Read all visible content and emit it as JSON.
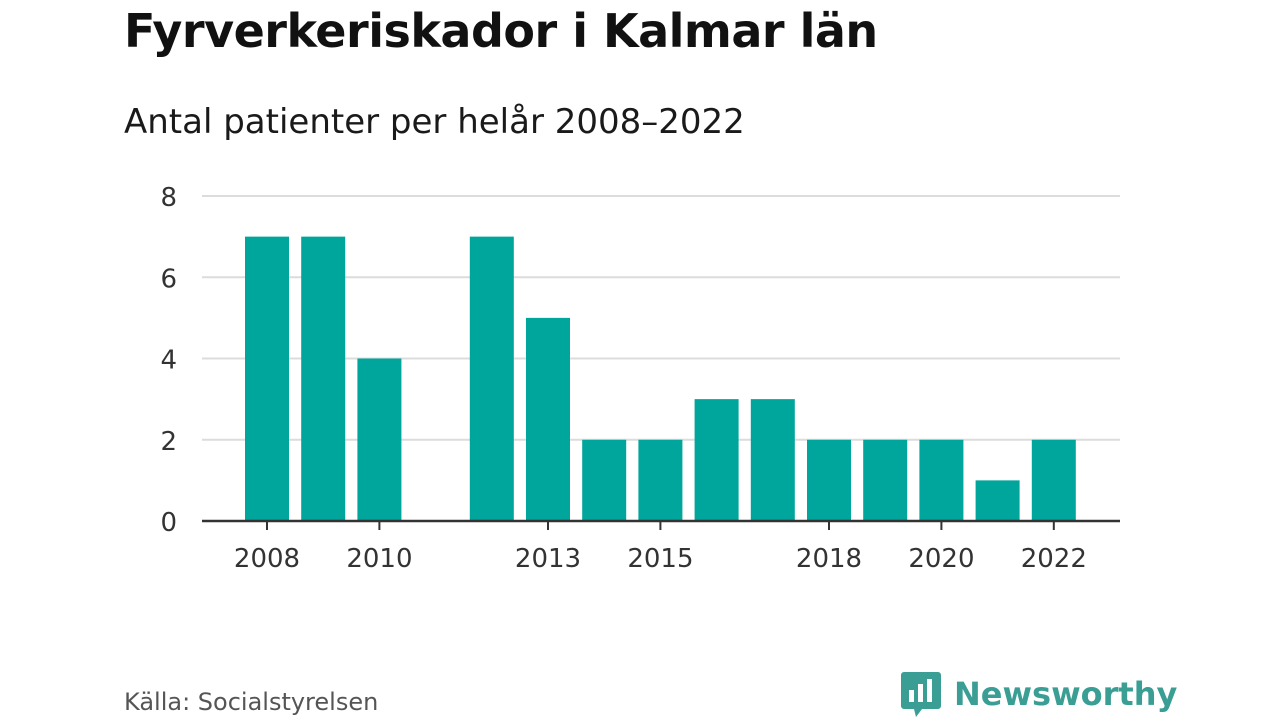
{
  "title": "Fyrverkeriskador i Kalmar län",
  "subtitle": "Antal patienter per helår 2008–2022",
  "source": "Källa: Socialstyrelsen",
  "brand": {
    "name": "Newsworthy",
    "icon": "newsworthy-logo-icon"
  },
  "colors": {
    "bar": "#00a59b",
    "grid": "#dcdcdc",
    "axis": "#333333",
    "brand": "#3a9e94"
  },
  "chart_data": {
    "type": "bar",
    "categories": [
      "2008",
      "2009",
      "2010",
      "2011",
      "2012",
      "2013",
      "2014",
      "2015",
      "2016",
      "2017",
      "2018",
      "2019",
      "2020",
      "2021",
      "2022"
    ],
    "values": [
      7,
      7,
      4,
      0,
      7,
      5,
      2,
      2,
      3,
      3,
      2,
      2,
      2,
      1,
      2
    ],
    "x_tick_labels": [
      "2008",
      "2010",
      "2013",
      "2015",
      "2018",
      "2020",
      "2022"
    ],
    "y_ticks": [
      0,
      2,
      4,
      6,
      8
    ],
    "ylim": [
      0,
      8
    ],
    "grid": true,
    "legend": "none"
  }
}
